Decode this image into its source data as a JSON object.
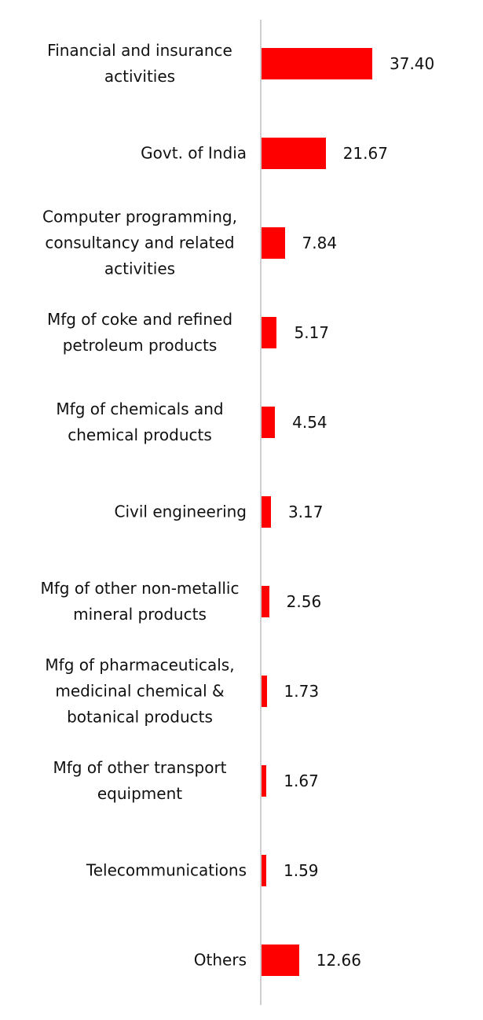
{
  "chart_data": {
    "type": "bar",
    "orientation": "horizontal",
    "color": "#ff0000",
    "categories": [
      "Financial and insurance activities",
      "Govt. of India",
      "Computer programming, consultancy and related activities",
      "Mfg of coke and refined petroleum products",
      "Mfg of chemicals and chemical products",
      "Civil engineering",
      "Mfg of other non-metallic mineral products",
      "Mfg of pharmaceuticals, medicinal chemical & botanical products",
      "Mfg of other transport equipment",
      "Telecommunications",
      "Others"
    ],
    "values": [
      37.4,
      21.67,
      7.84,
      5.17,
      4.54,
      3.17,
      2.56,
      1.73,
      1.67,
      1.59,
      12.66
    ],
    "value_labels": [
      "37.40",
      "21.67",
      "7.84",
      "5.17",
      "4.54",
      "3.17",
      "2.56",
      "1.73",
      "1.67",
      "1.59",
      "12.66"
    ]
  }
}
